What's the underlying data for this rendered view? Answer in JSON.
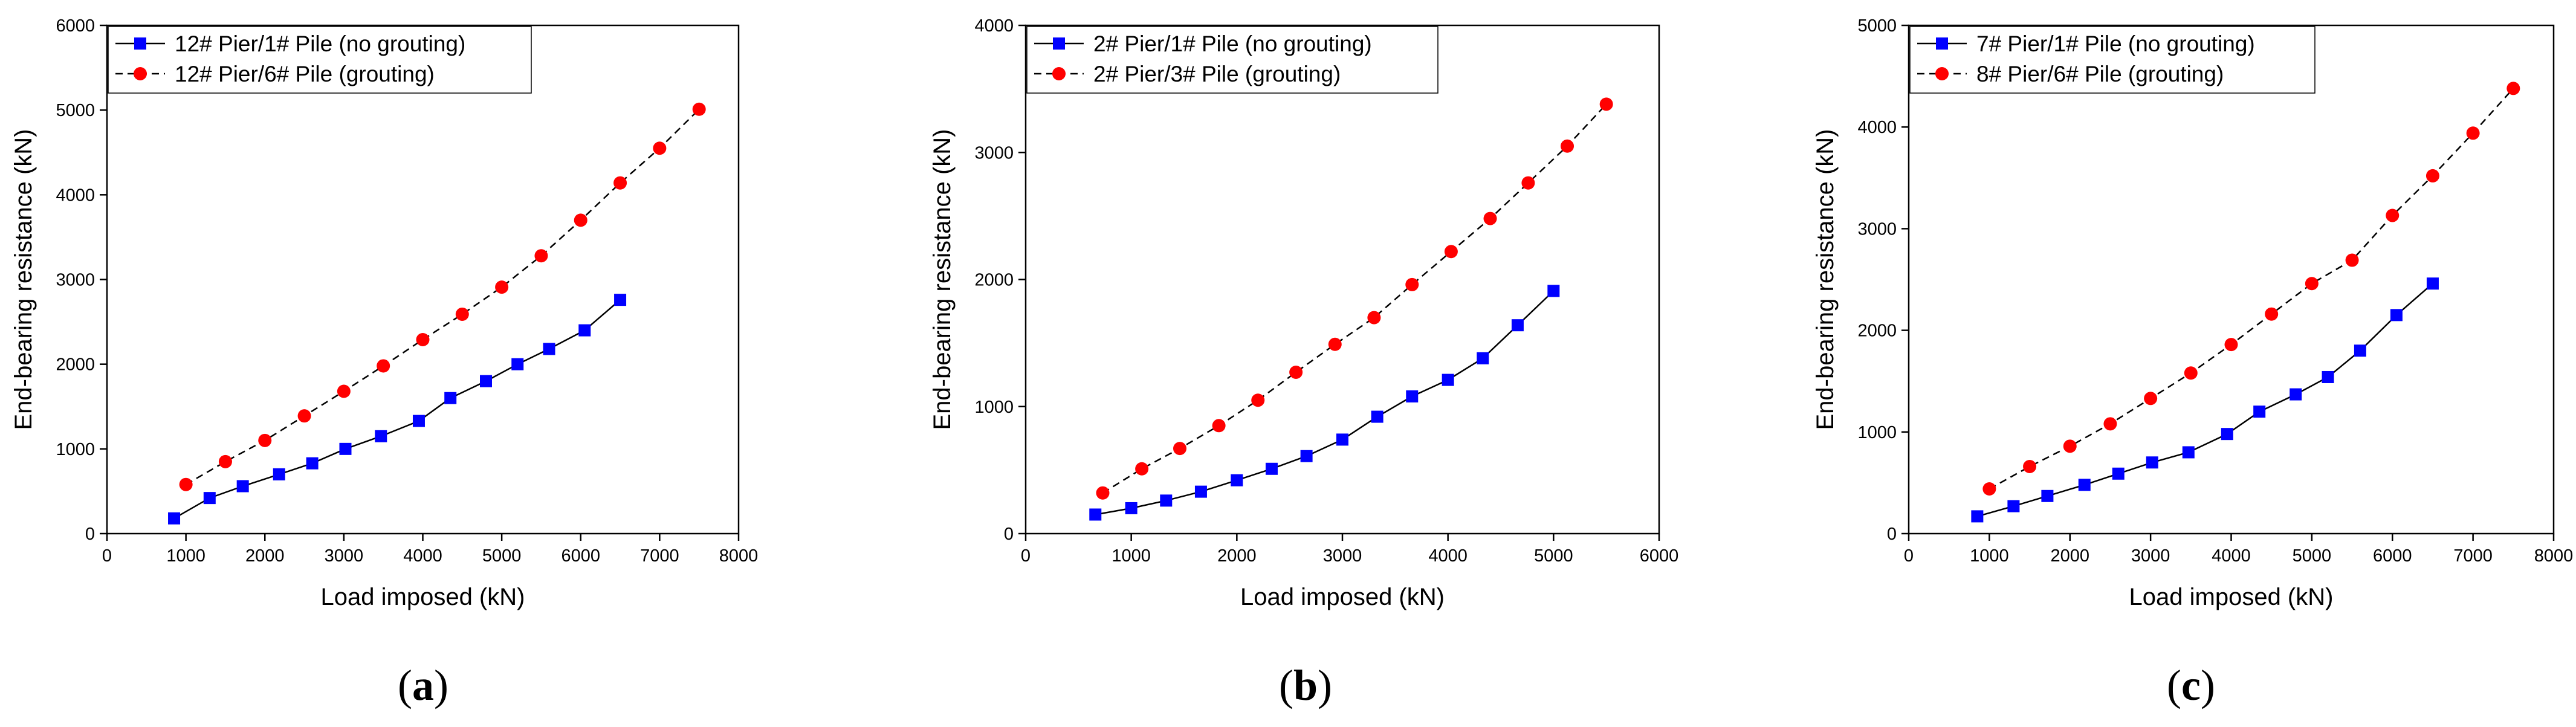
{
  "chart_data": [
    {
      "type": "line",
      "panel": "a",
      "caption": {
        "open": "(",
        "letter": "a",
        "close": ")"
      },
      "xlabel": "Load imposed (kN)",
      "ylabel": "End-bearing resistance (kN)",
      "xlim": [
        0,
        8000
      ],
      "ylim": [
        0,
        6000
      ],
      "x_ticks": [
        0,
        1000,
        2000,
        3000,
        4000,
        5000,
        6000,
        7000,
        8000
      ],
      "y_ticks": [
        0,
        1000,
        2000,
        3000,
        4000,
        5000,
        6000
      ],
      "legend_position": "top-left",
      "series": [
        {
          "name": "12# Pier/1# Pile (no grouting)",
          "color": "#0000ff",
          "marker": "square",
          "line": "solid",
          "x": [
            850,
            1300,
            1720,
            2180,
            2600,
            3020,
            3470,
            3950,
            4350,
            4800,
            5200,
            5600,
            6050,
            6500
          ],
          "y": [
            180,
            420,
            560,
            700,
            830,
            1000,
            1150,
            1330,
            1600,
            1800,
            2000,
            2180,
            2400,
            2760
          ]
        },
        {
          "name": "12# Pier/6# Pile (grouting)",
          "color": "#ff0000",
          "marker": "circle",
          "line": "dashed",
          "x": [
            1000,
            1500,
            2000,
            2500,
            3000,
            3500,
            4000,
            4500,
            5000,
            5500,
            6000,
            6500,
            7000,
            7500
          ],
          "y": [
            580,
            850,
            1100,
            1390,
            1680,
            1980,
            2290,
            2590,
            2910,
            3280,
            3700,
            4140,
            4550,
            5010
          ]
        }
      ]
    },
    {
      "type": "line",
      "panel": "b",
      "caption": {
        "open": "(",
        "letter": "b",
        "close": ")"
      },
      "xlabel": "Load imposed (kN)",
      "ylabel": "End-bearing resistance (kN)",
      "xlim": [
        0,
        6000
      ],
      "ylim": [
        0,
        4000
      ],
      "x_ticks": [
        0,
        1000,
        2000,
        3000,
        4000,
        5000,
        6000
      ],
      "y_ticks": [
        0,
        1000,
        2000,
        3000,
        4000
      ],
      "legend_position": "top-left",
      "series": [
        {
          "name": "2# Pier/1# Pile (no grouting)",
          "color": "#0000ff",
          "marker": "square",
          "line": "solid",
          "x": [
            660,
            1000,
            1330,
            1660,
            2000,
            2330,
            2660,
            3000,
            3330,
            3660,
            4000,
            4330,
            4660,
            5000
          ],
          "y": [
            150,
            200,
            260,
            330,
            420,
            510,
            610,
            740,
            920,
            1080,
            1210,
            1380,
            1640,
            1910
          ]
        },
        {
          "name": "2# Pier/3# Pile (grouting)",
          "color": "#ff0000",
          "marker": "circle",
          "line": "dashed",
          "x": [
            730,
            1100,
            1460,
            1830,
            2200,
            2560,
            2930,
            3300,
            3660,
            4030,
            4400,
            4760,
            5130,
            5500
          ],
          "y": [
            320,
            510,
            670,
            850,
            1050,
            1270,
            1490,
            1700,
            1960,
            2220,
            2480,
            2760,
            3050,
            3380
          ]
        }
      ]
    },
    {
      "type": "line",
      "panel": "c",
      "caption": {
        "open": "(",
        "letter": "c",
        "close": ")"
      },
      "xlabel": "Load imposed (kN)",
      "ylabel": "End-bearing resistance (kN)",
      "xlim": [
        0,
        8000
      ],
      "ylim": [
        0,
        5000
      ],
      "x_ticks": [
        0,
        1000,
        2000,
        3000,
        4000,
        5000,
        6000,
        7000,
        8000
      ],
      "y_ticks": [
        0,
        1000,
        2000,
        3000,
        4000,
        5000
      ],
      "legend_position": "top-left",
      "series": [
        {
          "name": "7# Pier/1# Pile (no grouting)",
          "color": "#0000ff",
          "marker": "square",
          "line": "solid",
          "x": [
            850,
            1300,
            1720,
            2180,
            2600,
            3020,
            3470,
            3950,
            4350,
            4800,
            5200,
            5600,
            6050,
            6500
          ],
          "y": [
            170,
            270,
            370,
            480,
            590,
            700,
            800,
            980,
            1200,
            1370,
            1540,
            1800,
            2150,
            2460
          ]
        },
        {
          "name": "8# Pier/6# Pile (grouting)",
          "color": "#ff0000",
          "marker": "circle",
          "line": "dashed",
          "x": [
            1000,
            1500,
            2000,
            2500,
            3000,
            3500,
            4000,
            4500,
            5000,
            5500,
            6000,
            6500,
            7000,
            7500
          ],
          "y": [
            440,
            660,
            860,
            1080,
            1330,
            1580,
            1860,
            2160,
            2460,
            2690,
            3130,
            3520,
            3940,
            4380
          ]
        }
      ]
    }
  ]
}
